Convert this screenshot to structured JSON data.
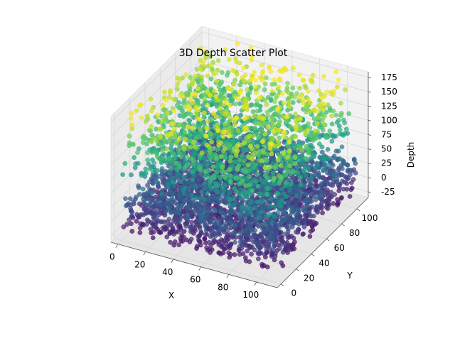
{
  "chart_data": {
    "type": "scatter",
    "projection": "3d",
    "title": "3D Depth Scatter Plot",
    "xlabel": "X",
    "ylabel": "Y",
    "zlabel": "Depth",
    "xlim": [
      -5,
      115
    ],
    "ylim": [
      -5,
      115
    ],
    "zlim": [
      -35,
      185
    ],
    "xticks": [
      0,
      20,
      40,
      60,
      80,
      100
    ],
    "yticks": [
      0,
      20,
      40,
      60,
      80,
      100
    ],
    "zticks": [
      -25,
      0,
      25,
      50,
      75,
      100,
      125,
      150,
      175
    ],
    "colormap": "viridis",
    "grid": true,
    "colors": {
      "pane_back": "#f2f2f2",
      "pane_side": "#ebebeb",
      "pane_floor": "#e6e6e6",
      "grid": "#d6d6d6",
      "axis": "#555555"
    },
    "points": {
      "count": 4200,
      "x_range": [
        0,
        110
      ],
      "y_range": [
        0,
        110
      ],
      "depth_range": [
        -30,
        180
      ],
      "depth_distribution": "dense near 0 to 40, thinning toward 180"
    }
  }
}
